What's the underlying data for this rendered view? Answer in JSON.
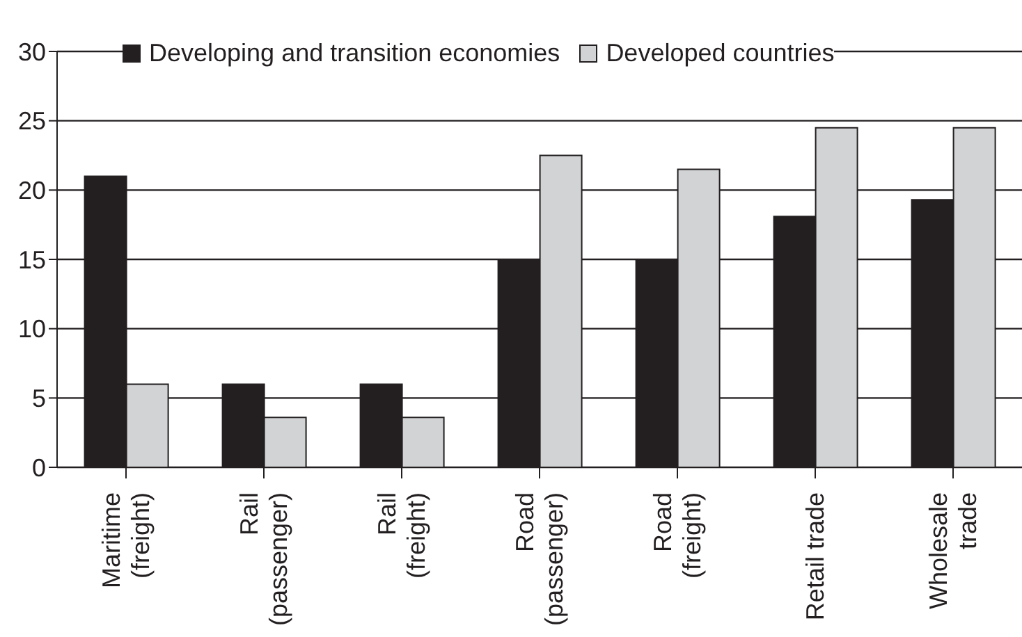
{
  "chart_data": {
    "type": "bar",
    "categories": [
      "Maritime (freight)",
      "Rail (passenger)",
      "Rail (freight)",
      "Road (passenger)",
      "Road (freight)",
      "Retail trade",
      "Wholesale trade"
    ],
    "series": [
      {
        "name": "Developing and transition economies",
        "color": "#231f20",
        "values": [
          21,
          6,
          6,
          15,
          15,
          18.1,
          19.3
        ]
      },
      {
        "name": "Developed countries",
        "color": "#d1d3d4",
        "values": [
          6,
          3.6,
          3.6,
          22.5,
          21.5,
          24.5,
          24.5
        ]
      }
    ],
    "ylim": [
      0,
      30
    ],
    "yticks": [
      0,
      5,
      10,
      15,
      20,
      25,
      30
    ],
    "grid": "y",
    "legend": "top"
  }
}
